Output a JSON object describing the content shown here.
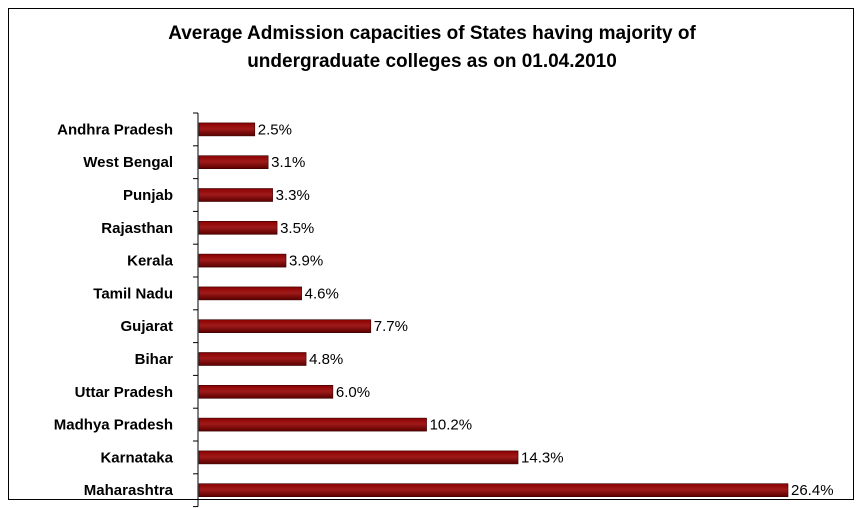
{
  "chart_data": {
    "type": "bar",
    "orientation": "horizontal",
    "title_lines": [
      "Average Admission capacities of States having majority of",
      "undergraduate colleges as on 01.04.2010"
    ],
    "categories": [
      "Andhra Pradesh",
      "West Bengal",
      "Punjab",
      "Rajasthan",
      "Kerala",
      "Tamil Nadu",
      "Gujarat",
      "Bihar",
      "Uttar Pradesh",
      "Madhya Pradesh",
      "Karnataka",
      "Maharashtra"
    ],
    "values": [
      2.5,
      3.1,
      3.3,
      3.5,
      3.9,
      4.6,
      7.7,
      4.8,
      6.0,
      10.2,
      14.3,
      26.4
    ],
    "value_labels": [
      "2.5%",
      "3.1%",
      "3.3%",
      "3.5%",
      "3.9%",
      "4.6%",
      "7.7%",
      "4.8%",
      "6.0%",
      "10.2%",
      "14.3%",
      "26.4%"
    ],
    "xlim": [
      0,
      26.4
    ],
    "bar_color": "#800000",
    "grid": false,
    "legend": "none"
  }
}
